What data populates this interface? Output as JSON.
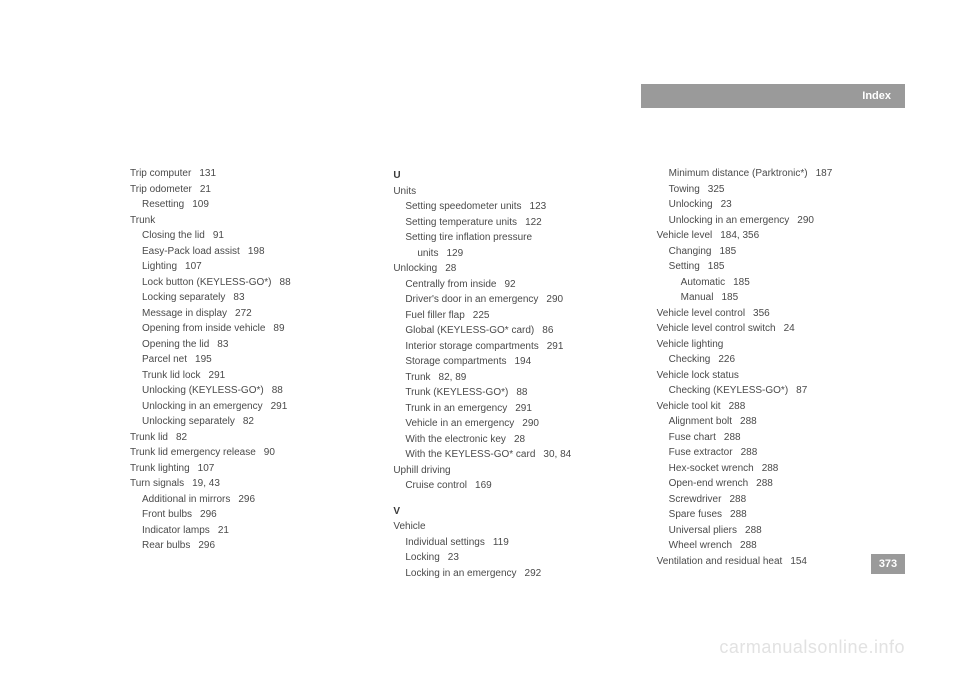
{
  "header": {
    "label": "Index"
  },
  "page_number": "373",
  "watermark": "carmanualsonline.info",
  "col1": [
    {
      "t": "Trip computer",
      "p": "131",
      "i": 0
    },
    {
      "t": "Trip odometer",
      "p": "21",
      "i": 0
    },
    {
      "t": "Resetting",
      "p": "109",
      "i": 1
    },
    {
      "t": "Trunk",
      "p": "",
      "i": 0
    },
    {
      "t": "Closing the lid",
      "p": "91",
      "i": 1
    },
    {
      "t": "Easy-Pack load assist",
      "p": "198",
      "i": 1
    },
    {
      "t": "Lighting",
      "p": "107",
      "i": 1
    },
    {
      "t": "Lock button (KEYLESS-GO*)",
      "p": "88",
      "i": 1
    },
    {
      "t": "Locking separately",
      "p": "83",
      "i": 1
    },
    {
      "t": "Message in display",
      "p": "272",
      "i": 1
    },
    {
      "t": "Opening from inside vehicle",
      "p": "89",
      "i": 1
    },
    {
      "t": "Opening the lid",
      "p": "83",
      "i": 1
    },
    {
      "t": "Parcel net",
      "p": "195",
      "i": 1
    },
    {
      "t": "Trunk lid lock",
      "p": "291",
      "i": 1
    },
    {
      "t": "Unlocking (KEYLESS-GO*)",
      "p": "88",
      "i": 1
    },
    {
      "t": "Unlocking in an emergency",
      "p": "291",
      "i": 1
    },
    {
      "t": "Unlocking separately",
      "p": "82",
      "i": 1
    },
    {
      "t": "Trunk lid",
      "p": "82",
      "i": 0
    },
    {
      "t": "Trunk lid emergency release",
      "p": "90",
      "i": 0
    },
    {
      "t": "Trunk lighting",
      "p": "107",
      "i": 0
    },
    {
      "t": "Turn signals",
      "p": "19, 43",
      "i": 0
    },
    {
      "t": "Additional in mirrors",
      "p": "296",
      "i": 1
    },
    {
      "t": "Front bulbs",
      "p": "296",
      "i": 1
    },
    {
      "t": "Indicator lamps",
      "p": "21",
      "i": 1
    },
    {
      "t": "Rear bulbs",
      "p": "296",
      "i": 1
    }
  ],
  "col2": [
    {
      "letter": "U"
    },
    {
      "t": "Units",
      "p": "",
      "i": 0
    },
    {
      "t": "Setting speedometer units",
      "p": "123",
      "i": 1
    },
    {
      "t": "Setting temperature units",
      "p": "122",
      "i": 1
    },
    {
      "t": "Setting tire inflation pressure",
      "p": "",
      "i": 1
    },
    {
      "t": "units",
      "p": "129",
      "i": 2
    },
    {
      "t": "Unlocking",
      "p": "28",
      "i": 0
    },
    {
      "t": "Centrally from inside",
      "p": "92",
      "i": 1
    },
    {
      "t": "Driver's door in an emergency",
      "p": "290",
      "i": 1
    },
    {
      "t": "Fuel filler flap",
      "p": "225",
      "i": 1
    },
    {
      "t": "Global (KEYLESS-GO* card)",
      "p": "86",
      "i": 1
    },
    {
      "t": "Interior storage compartments",
      "p": "291",
      "i": 1
    },
    {
      "t": "Storage compartments",
      "p": "194",
      "i": 1
    },
    {
      "t": "Trunk",
      "p": "82, 89",
      "i": 1
    },
    {
      "t": "Trunk (KEYLESS-GO*)",
      "p": "88",
      "i": 1
    },
    {
      "t": "Trunk in an emergency",
      "p": "291",
      "i": 1
    },
    {
      "t": "Vehicle in an emergency",
      "p": "290",
      "i": 1
    },
    {
      "t": "With the electronic key",
      "p": "28",
      "i": 1
    },
    {
      "t": "With the KEYLESS-GO* card",
      "p": "30, 84",
      "i": 1
    },
    {
      "t": "Uphill driving",
      "p": "",
      "i": 0
    },
    {
      "t": "Cruise control",
      "p": "169",
      "i": 1
    },
    {
      "spacer": true
    },
    {
      "letter": "V"
    },
    {
      "t": "Vehicle",
      "p": "",
      "i": 0
    },
    {
      "t": "Individual settings",
      "p": "119",
      "i": 1
    },
    {
      "t": "Locking",
      "p": "23",
      "i": 1
    },
    {
      "t": "Locking in an emergency",
      "p": "292",
      "i": 1
    }
  ],
  "col3": [
    {
      "t": "Minimum distance (Parktronic*)",
      "p": "187",
      "i": 1
    },
    {
      "t": "Towing",
      "p": "325",
      "i": 1
    },
    {
      "t": "Unlocking",
      "p": "23",
      "i": 1
    },
    {
      "t": "Unlocking in an emergency",
      "p": "290",
      "i": 1
    },
    {
      "t": "Vehicle level",
      "p": "184, 356",
      "i": 0
    },
    {
      "t": "Changing",
      "p": "185",
      "i": 1
    },
    {
      "t": "Setting",
      "p": "185",
      "i": 1
    },
    {
      "t": "Automatic",
      "p": "185",
      "i": 2
    },
    {
      "t": "Manual",
      "p": "185",
      "i": 2
    },
    {
      "t": "Vehicle level control",
      "p": "356",
      "i": 0
    },
    {
      "t": "Vehicle level control switch",
      "p": "24",
      "i": 0
    },
    {
      "t": "Vehicle lighting",
      "p": "",
      "i": 0
    },
    {
      "t": "Checking",
      "p": "226",
      "i": 1
    },
    {
      "t": "Vehicle lock status",
      "p": "",
      "i": 0
    },
    {
      "t": "Checking (KEYLESS-GO*)",
      "p": "87",
      "i": 1
    },
    {
      "t": "Vehicle tool kit",
      "p": "288",
      "i": 0
    },
    {
      "t": "Alignment bolt",
      "p": "288",
      "i": 1
    },
    {
      "t": "Fuse chart",
      "p": "288",
      "i": 1
    },
    {
      "t": "Fuse extractor",
      "p": "288",
      "i": 1
    },
    {
      "t": "Hex-socket wrench",
      "p": "288",
      "i": 1
    },
    {
      "t": "Open-end wrench",
      "p": "288",
      "i": 1
    },
    {
      "t": "Screwdriver",
      "p": "288",
      "i": 1
    },
    {
      "t": "Spare fuses",
      "p": "288",
      "i": 1
    },
    {
      "t": "Universal pliers",
      "p": "288",
      "i": 1
    },
    {
      "t": "Wheel wrench",
      "p": "288",
      "i": 1
    },
    {
      "t": "Ventilation and residual heat",
      "p": "154",
      "i": 0
    }
  ]
}
